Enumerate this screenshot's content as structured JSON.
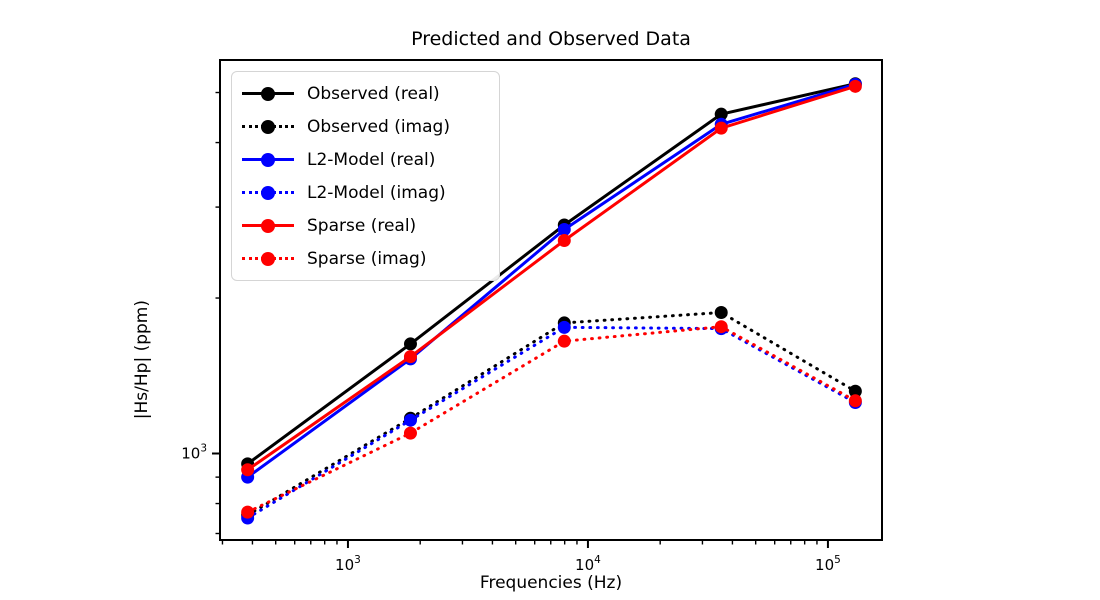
{
  "figure": {
    "title": "Predicted and Observed Data",
    "xlabel": "Frequencies (Hz)",
    "ylabel": "|Hs/Hp| (ppm)"
  },
  "chart_data": {
    "type": "line",
    "title": "Predicted and Observed Data",
    "xlabel": "Frequencies (Hz)",
    "ylabel": "|Hs/Hp| (ppm)",
    "x_scale": "log",
    "y_scale": "log",
    "xlim": [
      293,
      168000
    ],
    "ylim": [
      680,
      5780
    ],
    "x_major_ticks": [
      1000,
      10000,
      100000
    ],
    "y_major_ticks": [
      1000
    ],
    "grid": false,
    "legend_position": "upper left",
    "x": [
      382,
      1822,
      7970,
      35920,
      130100
    ],
    "series": [
      {
        "name": "Observed (real)",
        "color": "#000000",
        "style": "solid",
        "values": [
          955,
          1630,
          2770,
          4540,
          5200
        ]
      },
      {
        "name": "Observed (imag)",
        "color": "#000000",
        "style": "dotted",
        "values": [
          760,
          1170,
          1790,
          1875,
          1320
        ]
      },
      {
        "name": "L2-Model (real)",
        "color": "#0000ff",
        "style": "solid",
        "values": [
          900,
          1525,
          2715,
          4340,
          5185
        ]
      },
      {
        "name": "L2-Model (imag)",
        "color": "#0000ff",
        "style": "dotted",
        "values": [
          750,
          1160,
          1755,
          1745,
          1255
        ]
      },
      {
        "name": "Sparse (real)",
        "color": "#ff0000",
        "style": "solid",
        "values": [
          930,
          1540,
          2585,
          4265,
          5140
        ]
      },
      {
        "name": "Sparse (imag)",
        "color": "#ff0000",
        "style": "dotted",
        "values": [
          770,
          1095,
          1650,
          1760,
          1265
        ]
      }
    ]
  }
}
